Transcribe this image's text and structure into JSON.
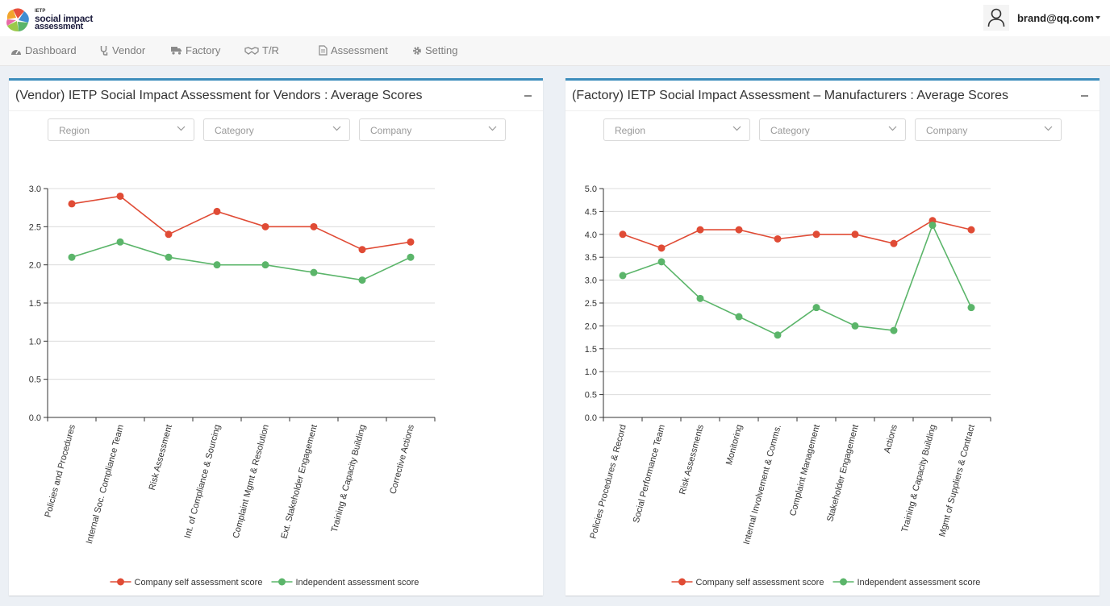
{
  "header": {
    "logo": {
      "sup": "IETP",
      "line1": "social impact",
      "line2": "assessment"
    },
    "user": {
      "email": "brand@qq.com"
    }
  },
  "nav": {
    "items": [
      {
        "id": "dashboard",
        "label": "Dashboard",
        "icon": "dashboard-icon"
      },
      {
        "id": "vendor",
        "label": "Vendor",
        "icon": "stethoscope-icon"
      },
      {
        "id": "factory",
        "label": "Factory",
        "icon": "truck-icon"
      },
      {
        "id": "tr",
        "label": "T/R",
        "icon": "handshake-icon"
      },
      {
        "id": "assessment",
        "label": "Assessment",
        "icon": "document-icon"
      },
      {
        "id": "setting",
        "label": "Setting",
        "icon": "gear-icon"
      }
    ]
  },
  "panels": [
    {
      "id": "vendor",
      "title": "(Vendor) IETP Social Impact Assessment for Vendors : Average Scores",
      "filters": {
        "region": "Region",
        "category": "Category",
        "company": "Company"
      }
    },
    {
      "id": "factory",
      "title": "(Factory) IETP Social Impact Assessment – Manufacturers : Average Scores",
      "filters": {
        "region": "Region",
        "category": "Category",
        "company": "Company"
      }
    }
  ],
  "colors": {
    "accent": "#3c8dbc",
    "self": "#e04b35",
    "independent": "#5bb56a"
  },
  "chart_data": [
    {
      "type": "line",
      "categories": [
        "Policies and Procedures",
        "Internal Soc. Compliance Team",
        "Risk Assessment",
        "Int. of Compliance & Sourcing",
        "Complaint Mgmt & Resolution",
        "Ext. Stakeholder Engagement",
        "Training & Capacity Building",
        "Corrective Actions"
      ],
      "series": [
        {
          "name": "Company self assessment score",
          "values": [
            2.8,
            2.9,
            2.4,
            2.7,
            2.5,
            2.5,
            2.2,
            2.3
          ]
        },
        {
          "name": "Independent assessment score",
          "values": [
            2.1,
            2.3,
            2.1,
            2.0,
            2.0,
            1.9,
            1.8,
            2.1
          ]
        }
      ],
      "ylim": [
        0,
        3.0
      ],
      "yticks": [
        "0.0",
        "0.5",
        "1.0",
        "1.5",
        "2.0",
        "2.5",
        "3.0"
      ],
      "grid": true,
      "legend": "bottom"
    },
    {
      "type": "line",
      "categories": [
        "Policies Procedures & Record",
        "Social Performance Team",
        "Risk Assessments",
        "Monitoring",
        "Internal Involvement & Comms.",
        "Complaint Management",
        "Stakeholder Engagement",
        "Actions",
        "Training & Capacity Building",
        "Mgmt of Suppliers & Contract"
      ],
      "series": [
        {
          "name": "Company self assessment score",
          "values": [
            4.0,
            3.7,
            4.1,
            4.1,
            3.9,
            4.0,
            4.0,
            3.8,
            4.3,
            4.1
          ]
        },
        {
          "name": "Independent assessment score",
          "values": [
            3.1,
            3.4,
            2.6,
            2.2,
            1.8,
            2.4,
            2.0,
            1.9,
            4.2,
            2.4
          ]
        }
      ],
      "ylim": [
        0,
        5.0
      ],
      "yticks": [
        "0.0",
        "0.5",
        "1.0",
        "1.5",
        "2.0",
        "2.5",
        "3.0",
        "3.5",
        "4.0",
        "4.5",
        "5.0"
      ],
      "grid": true,
      "legend": "bottom"
    }
  ]
}
